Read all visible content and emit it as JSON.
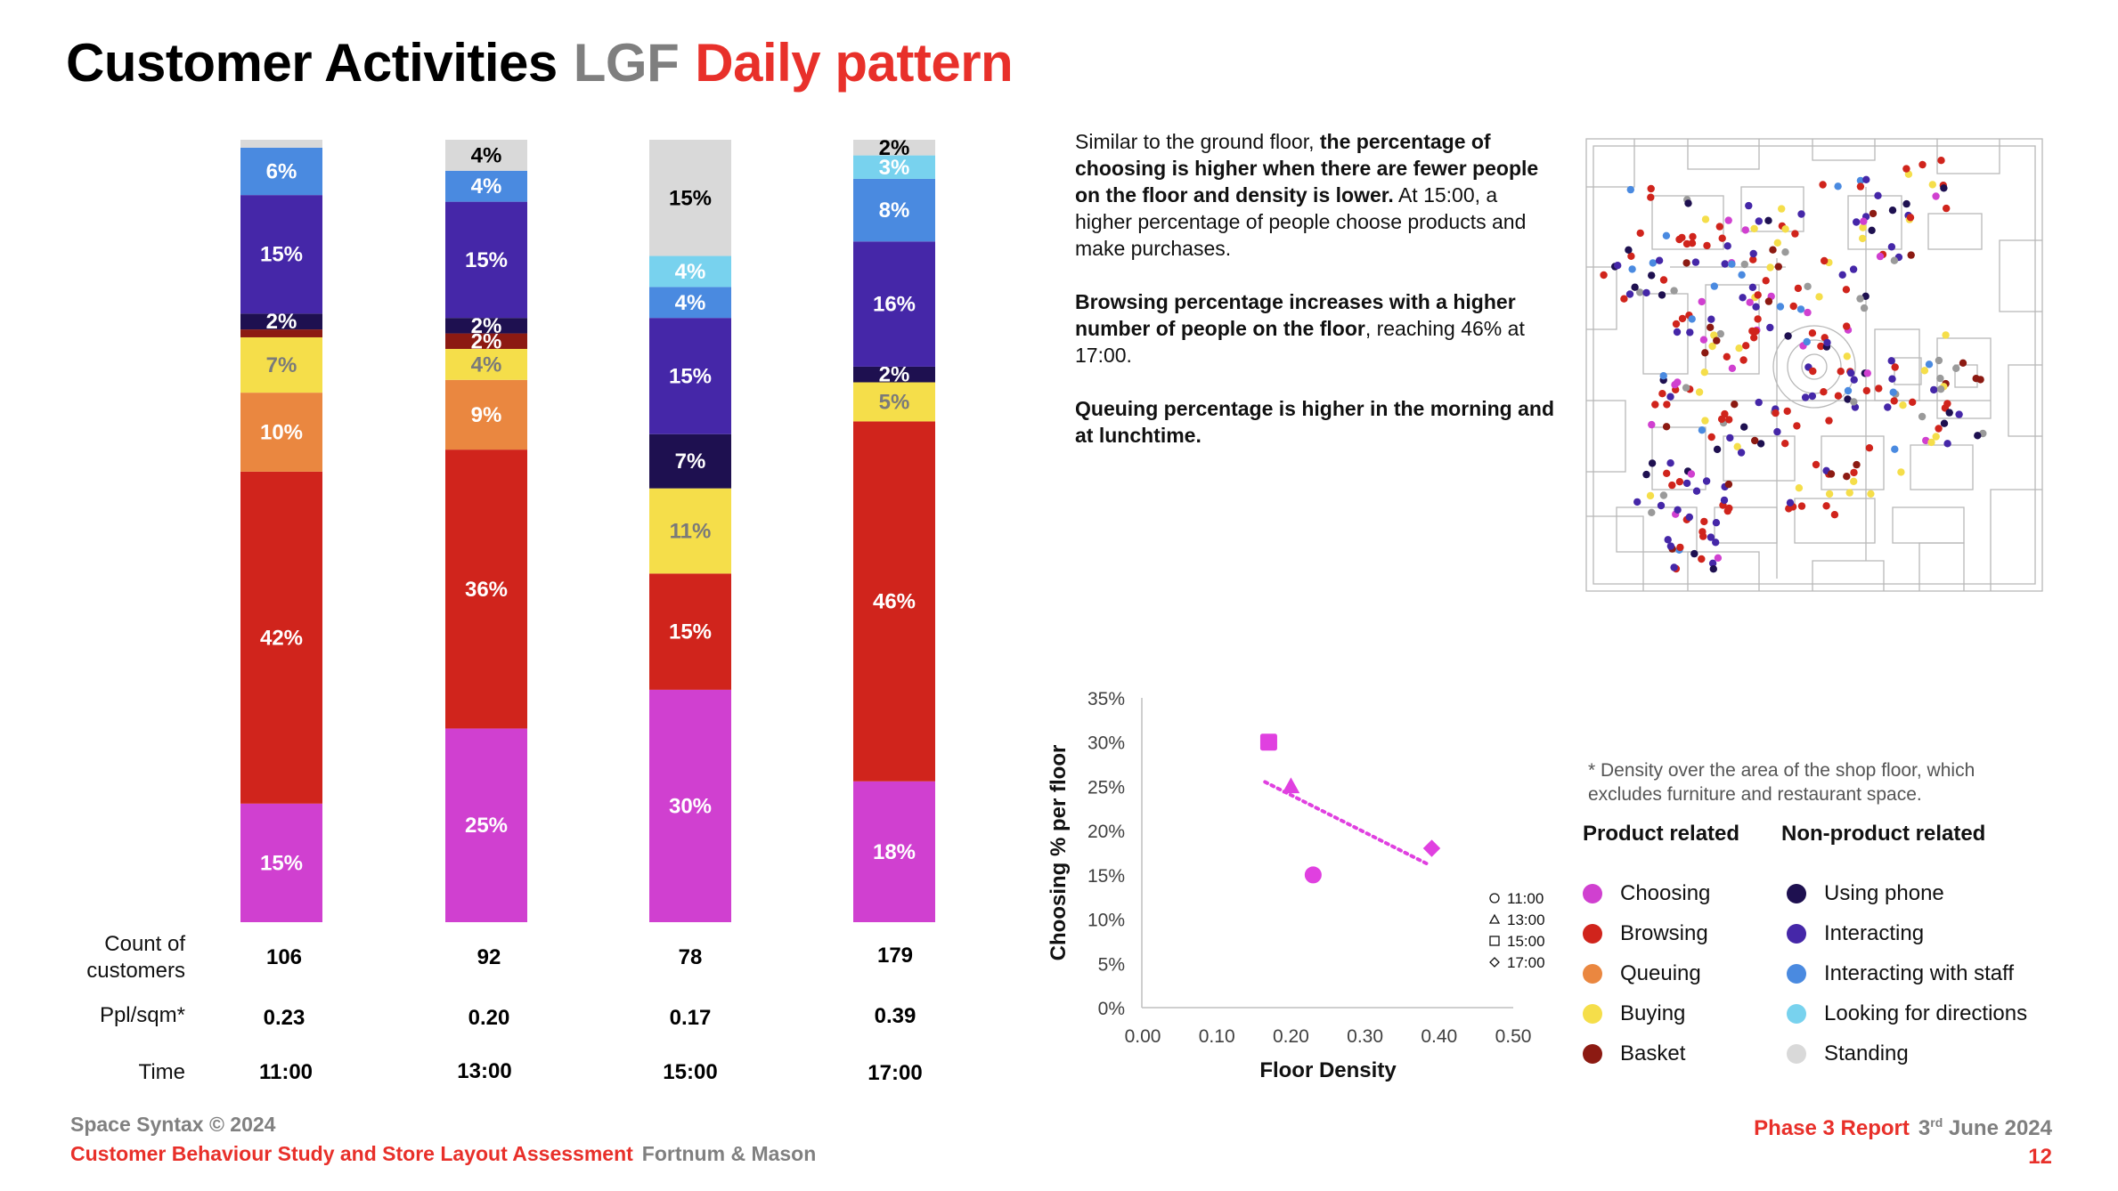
{
  "title": {
    "main": "Customer Activities",
    "floor": "LGF",
    "sub": "Daily pattern"
  },
  "row_labels": {
    "count": "Count of customers",
    "density": "Ppl/sqm*",
    "time": "Time"
  },
  "columns": [
    {
      "time": "11:00",
      "count": "106",
      "density": "0.23"
    },
    {
      "time": "13:00",
      "count": "92",
      "density": "0.20"
    },
    {
      "time": "15:00",
      "count": "78",
      "density": "0.17"
    },
    {
      "time": "17:00",
      "count": "179",
      "density": "0.39"
    }
  ],
  "description": {
    "p1_a": "Similar to the ground floor, ",
    "p1_b": "the percentage of choosing is higher when there are fewer people on the floor and density is lower.",
    "p1_c": " At 15:00, a higher percentage of people choose products and make purchases.",
    "p2_a": "Browsing percentage increases with a higher number of people on the floor",
    "p2_b": ", reaching 46% at 17:00.",
    "p3": "Queuing percentage is higher in the morning and at lunchtime."
  },
  "density_note": "* Density over the area of the shop floor, which excludes furniture and  restaurant space.",
  "legend": {
    "product_title": "Product related",
    "nonproduct_title": "Non-product related",
    "product": [
      {
        "label": "Choosing",
        "color": "#d040d0"
      },
      {
        "label": "Browsing",
        "color": "#d0241c"
      },
      {
        "label": "Queuing",
        "color": "#ea8740"
      },
      {
        "label": "Buying",
        "color": "#f5de4a"
      },
      {
        "label": "Basket",
        "color": "#8c1a12"
      }
    ],
    "nonproduct": [
      {
        "label": "Using phone",
        "color": "#1e1050"
      },
      {
        "label": "Interacting",
        "color": "#4527a8"
      },
      {
        "label": "Interacting with staff",
        "color": "#4a8ae0"
      },
      {
        "label": "Looking for directions",
        "color": "#78d2ee"
      },
      {
        "label": "Standing",
        "color": "#d9d9d9"
      }
    ]
  },
  "map": {
    "icon": "floor-plan-heatmap"
  },
  "chart_data": [
    {
      "type": "bar",
      "stacked": true,
      "categories": [
        "11:00",
        "13:00",
        "15:00",
        "17:00"
      ],
      "series": [
        {
          "name": "Choosing",
          "color": "#d040d0",
          "values": [
            15,
            25,
            30,
            18
          ],
          "labels": [
            "15%",
            "25%",
            "30%",
            "18%"
          ]
        },
        {
          "name": "Browsing",
          "color": "#d0241c",
          "values": [
            42,
            36,
            15,
            46
          ],
          "labels": [
            "42%",
            "36%",
            "15%",
            "46%"
          ]
        },
        {
          "name": "Queuing",
          "color": "#ea8740",
          "values": [
            10,
            9,
            0,
            0
          ],
          "labels": [
            "10%",
            "9%",
            "",
            ""
          ]
        },
        {
          "name": "Buying",
          "color": "#f5de4a",
          "values": [
            7,
            4,
            11,
            5
          ],
          "labels": [
            "7%",
            "4%",
            "11%",
            "5%"
          ]
        },
        {
          "name": "Basket",
          "color": "#8c1a12",
          "values": [
            1,
            2,
            0,
            0
          ],
          "labels": [
            "",
            "2%",
            "",
            ""
          ]
        },
        {
          "name": "Using phone",
          "color": "#1e1050",
          "values": [
            2,
            2,
            7,
            2
          ],
          "labels": [
            "2%",
            "2%",
            "7%",
            "2%"
          ]
        },
        {
          "name": "Interacting",
          "color": "#4527a8",
          "values": [
            15,
            15,
            15,
            16
          ],
          "labels": [
            "15%",
            "15%",
            "15%",
            "16%"
          ]
        },
        {
          "name": "Interacting with staff",
          "color": "#4a8ae0",
          "values": [
            6,
            4,
            4,
            8
          ],
          "labels": [
            "6%",
            "4%",
            "4%",
            "8%"
          ]
        },
        {
          "name": "Looking for directions",
          "color": "#78d2ee",
          "values": [
            0,
            0,
            4,
            3
          ],
          "labels": [
            "",
            "",
            "4%",
            "3%"
          ]
        },
        {
          "name": "Standing",
          "color": "#d9d9d9",
          "values": [
            1,
            4,
            15,
            2
          ],
          "labels": [
            "",
            "4%",
            "15%",
            "2%"
          ]
        }
      ],
      "ylim": [
        0,
        100
      ]
    },
    {
      "type": "scatter",
      "xlabel": "Floor Density",
      "ylabel": "Choosing % per floor",
      "xlim": [
        0,
        0.5
      ],
      "ylim": [
        0,
        35
      ],
      "xticks": [
        "0.00",
        "0.10",
        "0.20",
        "0.30",
        "0.40",
        "0.50"
      ],
      "yticks": [
        "0%",
        "5%",
        "10%",
        "15%",
        "20%",
        "25%",
        "30%",
        "35%"
      ],
      "points": [
        {
          "name": "11:00",
          "marker": "circle",
          "x": 0.23,
          "y": 15
        },
        {
          "name": "13:00",
          "marker": "triangle",
          "x": 0.2,
          "y": 25
        },
        {
          "name": "15:00",
          "marker": "square",
          "x": 0.17,
          "y": 30
        },
        {
          "name": "17:00",
          "marker": "diamond",
          "x": 0.39,
          "y": 18
        }
      ],
      "trendline": {
        "style": "dotted",
        "x": [
          0.165,
          0.385
        ],
        "y": [
          25.5,
          16.2
        ]
      },
      "marker_color": "#e040e0",
      "legend_placement": "right"
    }
  ],
  "footer": {
    "copyright": "Space Syntax © 2024",
    "study": "Customer Behaviour Study and Store Layout Assessment",
    "client": "Fortnum & Mason",
    "report": "Phase 3 Report",
    "date_day": "3",
    "date_sup": "rd",
    "date_rest": " June 2024",
    "page": "12"
  }
}
